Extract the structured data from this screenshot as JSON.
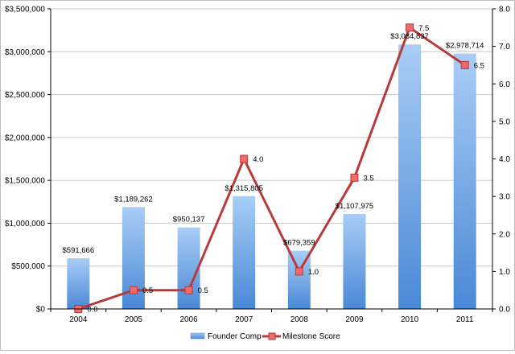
{
  "chart_data": {
    "type": "bar",
    "categories": [
      "2004",
      "2005",
      "2006",
      "2007",
      "2008",
      "2009",
      "2010",
      "2011"
    ],
    "series": [
      {
        "name": "Founder Comp",
        "type": "bar",
        "axis": "left",
        "values": [
          591666,
          1189262,
          950137,
          1315805,
          679359,
          1107975,
          3084837,
          2978714
        ],
        "labels": [
          "$591,666",
          "$1,189,262",
          "$950,137",
          "$1,315,805",
          "$679,359",
          "$1,107,975",
          "$3,084,837",
          "$2,978,714"
        ]
      },
      {
        "name": "Milestone Score",
        "type": "line",
        "axis": "right",
        "values": [
          0.0,
          0.5,
          0.5,
          4.0,
          1.0,
          3.5,
          7.5,
          6.5
        ],
        "labels": [
          "0.0",
          "0.5",
          "0.5",
          "4.0",
          "1.0",
          "3.5",
          "7.5",
          "6.5"
        ]
      }
    ],
    "y_left": {
      "ylim": [
        0,
        3500000
      ],
      "ticks": [
        0,
        500000,
        1000000,
        1500000,
        2000000,
        2500000,
        3000000,
        3500000
      ],
      "tick_labels": [
        "$0",
        "$500,000",
        "$1,000,000",
        "$1,500,000",
        "$2,000,000",
        "$2,500,000",
        "$3,000,000",
        "$3,500,000"
      ]
    },
    "y_right": {
      "ylim": [
        0,
        8
      ],
      "ticks": [
        0,
        1,
        2,
        3,
        4,
        5,
        6,
        7,
        8
      ],
      "tick_labels": [
        "0.0",
        "1.0",
        "2.0",
        "3.0",
        "4.0",
        "5.0",
        "6.0",
        "7.0",
        "8.0"
      ]
    },
    "grid": true,
    "legend_position": "bottom",
    "colors": {
      "bar_top": "#a9cdf6",
      "bar_bottom": "#4a88d6",
      "line": "#b83a3a",
      "marker_fill": "#f06a6a",
      "marker_stroke": "#b83a3a",
      "grid": "#c8c8c8"
    }
  }
}
